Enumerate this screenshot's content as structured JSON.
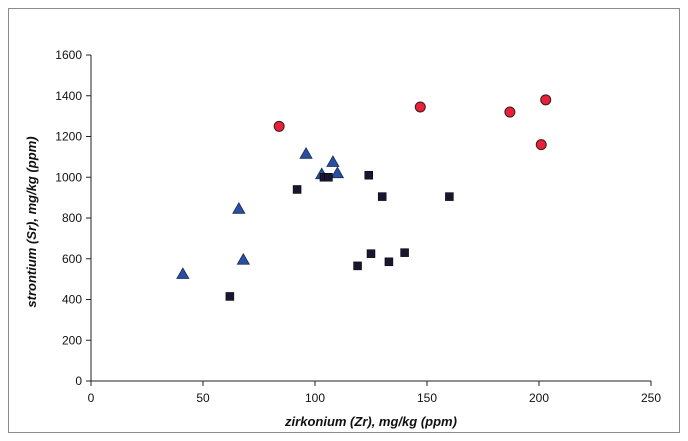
{
  "chart_data": {
    "type": "scatter",
    "title": "",
    "xlabel": "zirkonium (Zr), mg/kg (ppm)",
    "ylabel": "strontium (Sr), mg/kg (ppm)",
    "xlim": [
      0,
      250
    ],
    "ylim": [
      0,
      1600
    ],
    "x_ticks": [
      "0",
      "50",
      "100",
      "150",
      "200",
      "250"
    ],
    "y_ticks": [
      "0",
      "200",
      "400",
      "600",
      "800",
      "1000",
      "1200",
      "1400",
      "1600"
    ],
    "grid": false,
    "legend": "none",
    "series": [
      {
        "marker": "circle",
        "color": "#e8213a",
        "points": [
          [
            84,
            1250
          ],
          [
            147,
            1345
          ],
          [
            187,
            1320
          ],
          [
            201,
            1160
          ],
          [
            203,
            1380
          ]
        ]
      },
      {
        "marker": "triangle",
        "color": "#2a4ea0",
        "points": [
          [
            41,
            525
          ],
          [
            66,
            845
          ],
          [
            68,
            595
          ],
          [
            96,
            1115
          ],
          [
            103,
            1015
          ],
          [
            108,
            1075
          ],
          [
            110,
            1020
          ]
        ]
      },
      {
        "marker": "square",
        "color": "#1b1530",
        "points": [
          [
            62,
            415
          ],
          [
            92,
            940
          ],
          [
            104,
            1000
          ],
          [
            106,
            1000
          ],
          [
            119,
            565
          ],
          [
            124,
            1010
          ],
          [
            125,
            625
          ],
          [
            130,
            905
          ],
          [
            133,
            585
          ],
          [
            140,
            630
          ],
          [
            160,
            905
          ]
        ]
      }
    ]
  }
}
